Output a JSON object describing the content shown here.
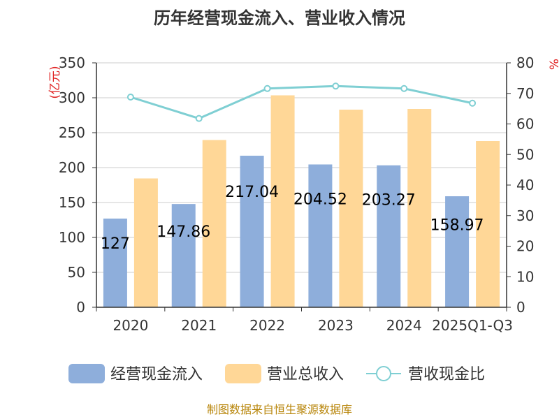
{
  "chart_data": {
    "type": "bar",
    "title": "历年经营现金流入、营业收入情况",
    "categories": [
      "2020",
      "2021",
      "2022",
      "2023",
      "2024",
      "2025Q1-Q3"
    ],
    "left_unit": "(亿元)",
    "right_unit": "%",
    "ylim_left": [
      0,
      350
    ],
    "ylim_right": [
      0,
      80
    ],
    "left_ticks": [
      "0",
      "50",
      "100",
      "150",
      "200",
      "250",
      "300",
      "350"
    ],
    "right_ticks": [
      "0",
      "10",
      "20",
      "30",
      "40",
      "50",
      "60",
      "70",
      "80"
    ],
    "grid": true,
    "legend_position": "bottom",
    "series": [
      {
        "name": "经营现金流入",
        "kind": "bar",
        "axis": "left",
        "color": "#8eaedb",
        "values": [
          127,
          147.86,
          217.04,
          204.52,
          203.27,
          158.97
        ],
        "labels": [
          "127",
          "147.86",
          "217.04",
          "204.52",
          "203.27",
          "158.97"
        ]
      },
      {
        "name": "营业总收入",
        "kind": "bar",
        "axis": "left",
        "color": "#ffd797",
        "values": [
          184.5,
          239.5,
          303.5,
          283,
          284,
          238
        ]
      },
      {
        "name": "营收现金比",
        "kind": "line",
        "axis": "right",
        "color": "#7fcfd3",
        "values": [
          68.8,
          61.8,
          71.6,
          72.4,
          71.6,
          66.8
        ]
      }
    ]
  },
  "source": "制图数据来自恒生聚源数据库"
}
